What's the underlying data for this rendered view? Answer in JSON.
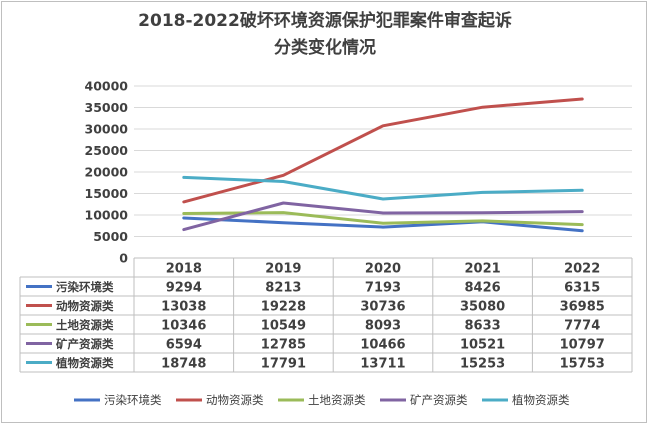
{
  "title_line1": "2018-2022破坏环境资源保护犯罪案件审查起诉",
  "title_line2": "分类变化情况",
  "chart_data": {
    "type": "line",
    "title": "2018-2022破坏环境资源保护犯罪案件审查起诉分类变化情况",
    "categories": [
      "2018",
      "2019",
      "2020",
      "2021",
      "2022"
    ],
    "y_ticks": [
      "0",
      "5000",
      "10000",
      "15000",
      "20000",
      "25000",
      "30000",
      "35000",
      "40000"
    ],
    "ylim": [
      0,
      40000
    ],
    "grid": true,
    "legend_position": "bottom",
    "has_data_table": true,
    "series": [
      {
        "name": "污染环境类",
        "color": "#4472c4",
        "values": [
          9294,
          8213,
          7193,
          8426,
          6315
        ]
      },
      {
        "name": "动物资源类",
        "color": "#c0504d",
        "values": [
          13038,
          19228,
          30736,
          35080,
          36985
        ]
      },
      {
        "name": "土地资源类",
        "color": "#9bbb59",
        "values": [
          10346,
          10549,
          8093,
          8633,
          7774
        ]
      },
      {
        "name": "矿产资源类",
        "color": "#8064a2",
        "values": [
          6594,
          12785,
          10466,
          10521,
          10797
        ]
      },
      {
        "name": "植物资源类",
        "color": "#4bacc6",
        "values": [
          18748,
          17791,
          13711,
          15253,
          15753
        ]
      }
    ]
  }
}
